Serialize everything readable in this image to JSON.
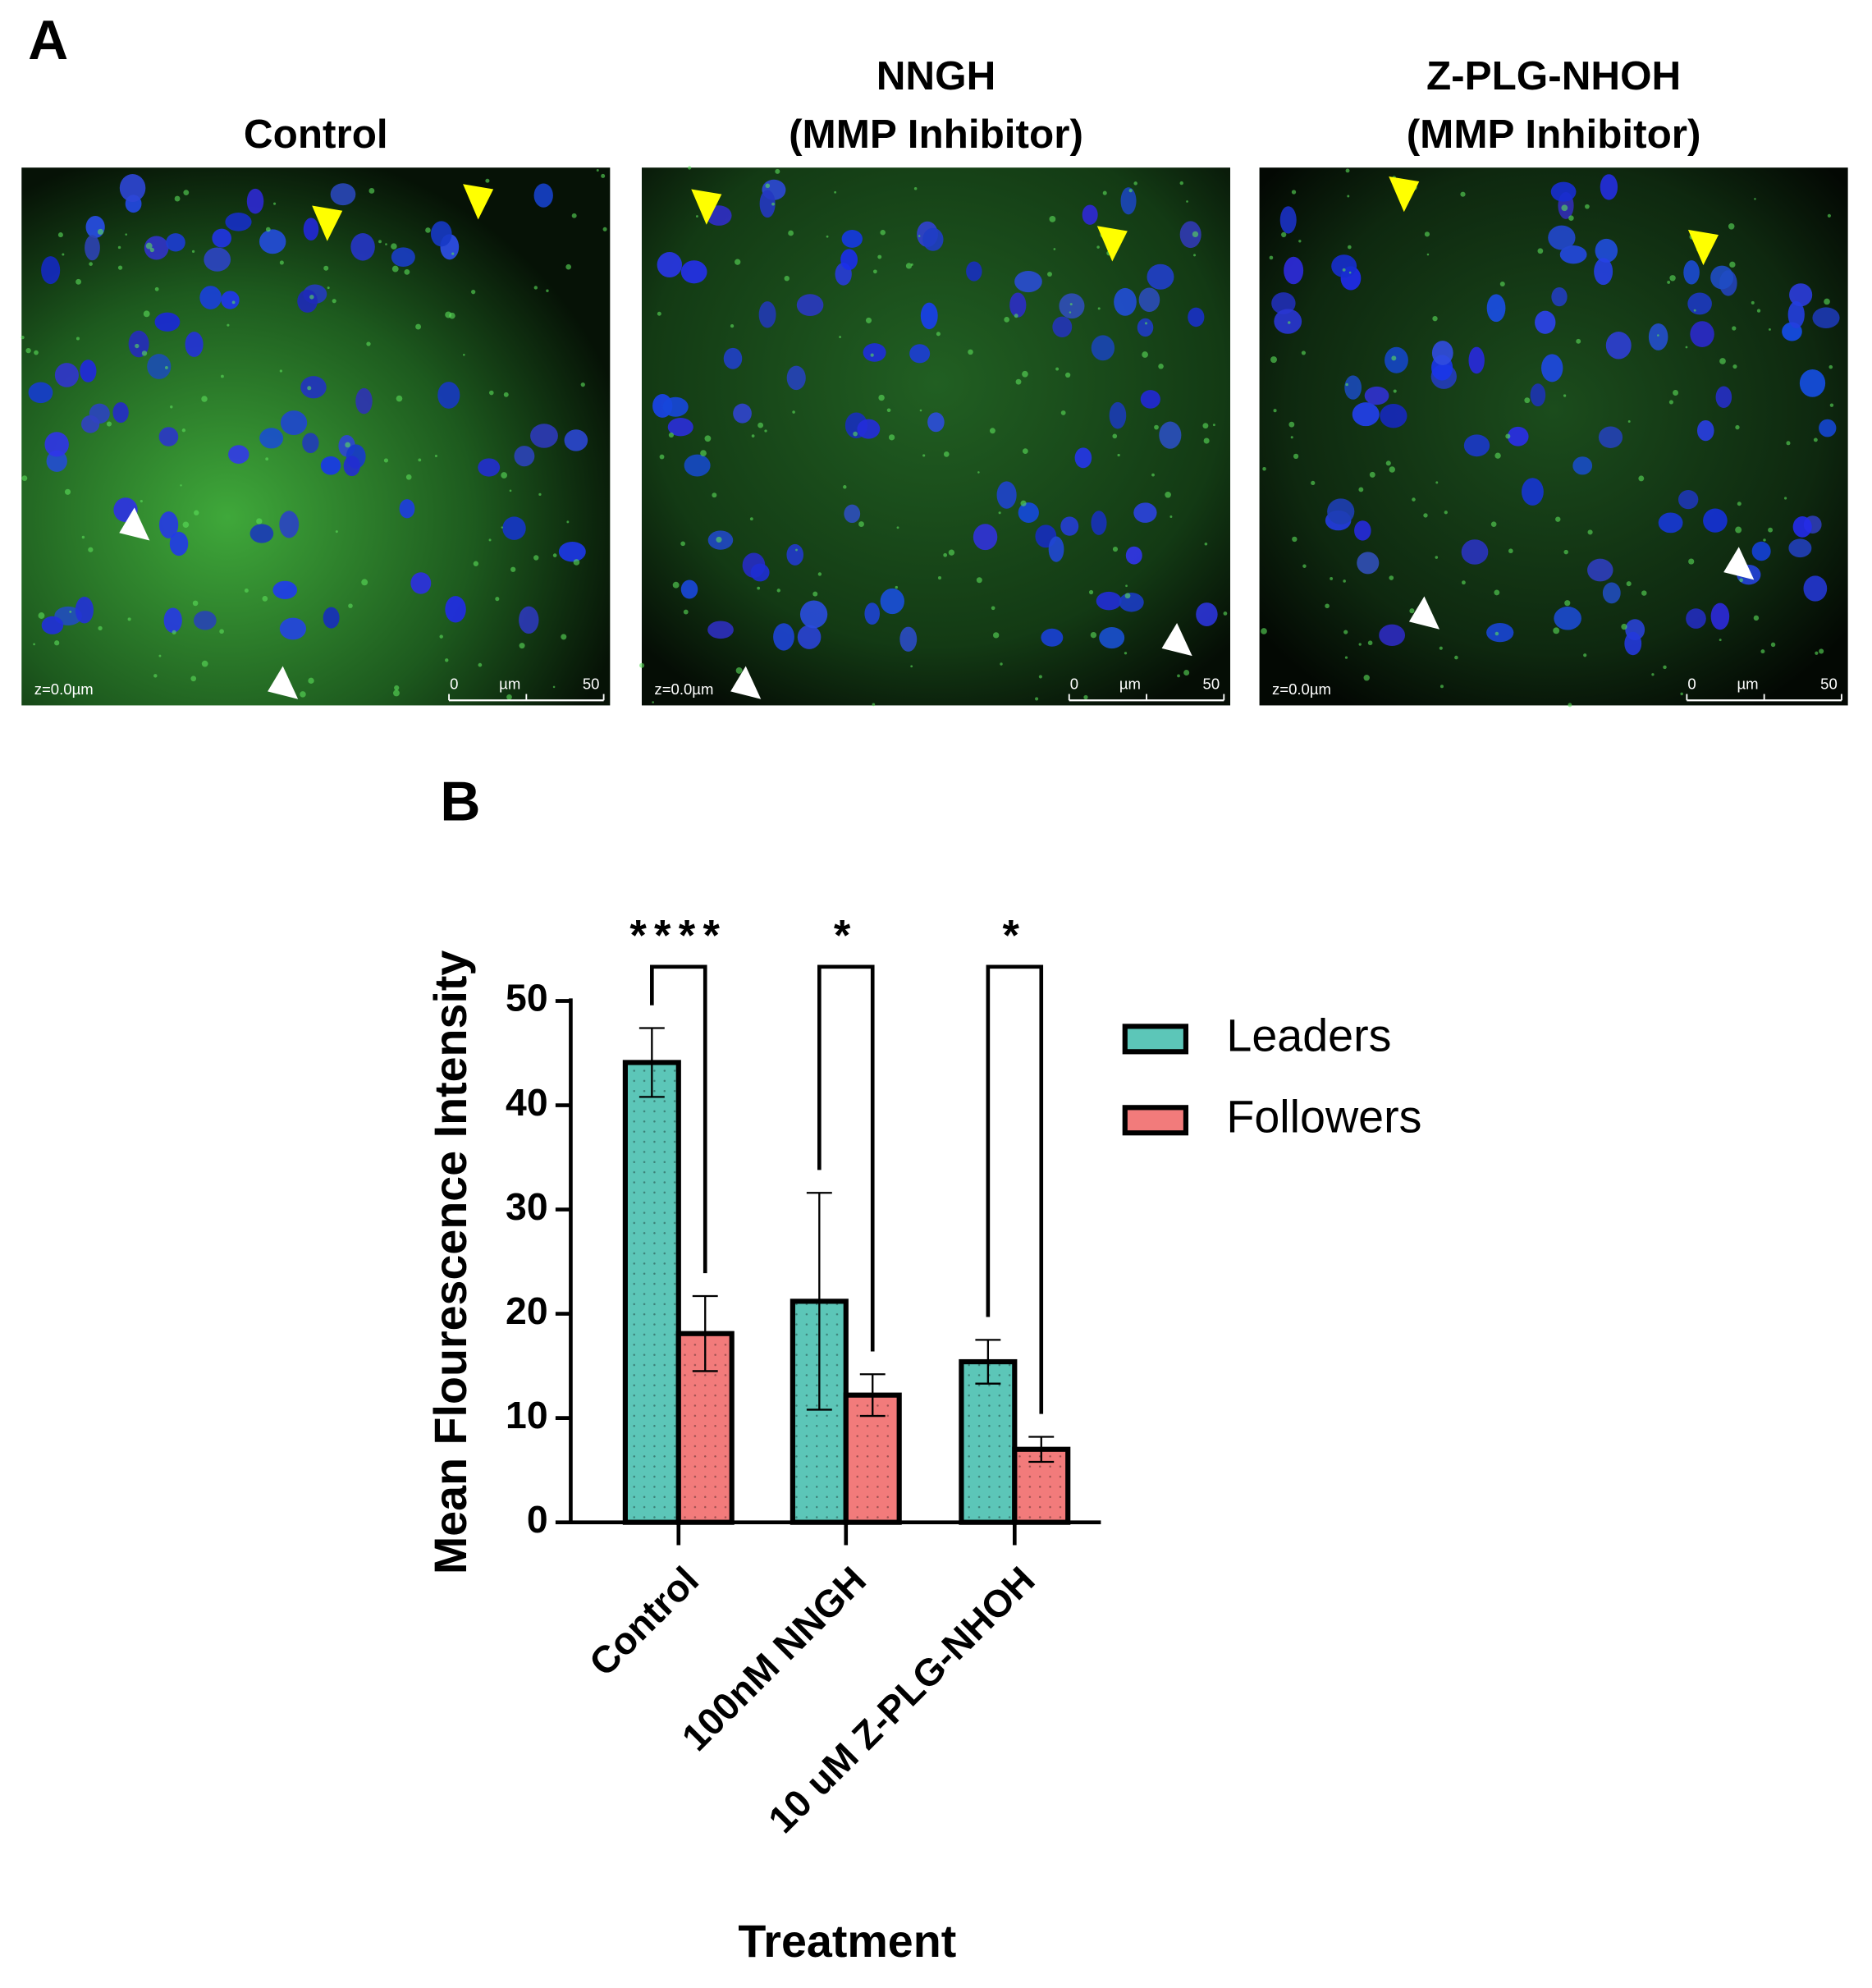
{
  "panel_a": {
    "label": "A",
    "images": [
      {
        "title": [
          "Control"
        ],
        "z": "z=0.0µm",
        "scale": [
          "0",
          "µm",
          "50"
        ]
      },
      {
        "title": [
          "NNGH",
          "(MMP Inhibitor)"
        ],
        "z": "z=0.0µm",
        "scale": [
          "0",
          "µm",
          "50"
        ]
      },
      {
        "title": [
          "Z-PLG-NHOH",
          "(MMP Inhibitor)"
        ],
        "z": "z=0.0µm",
        "scale": [
          "0",
          "µm",
          "50"
        ]
      }
    ]
  },
  "chart_data": {
    "type": "bar",
    "panel_label": "B",
    "x_label": "Treatment",
    "y_label": "Mean Flourescence Intensity",
    "categories": [
      "Control",
      "100nM NNGH",
      "10 uM Z-PLG-NHOH"
    ],
    "series": [
      {
        "name": "Leaders",
        "color": "#5cc6b8",
        "values": [
          44.1,
          21.2,
          15.4
        ],
        "errors": [
          3.3,
          10.4,
          2.1
        ]
      },
      {
        "name": "Followers",
        "color": "#f27b7b",
        "values": [
          18.1,
          12.2,
          7.0
        ],
        "errors": [
          3.6,
          2.0,
          1.2
        ]
      }
    ],
    "significance": [
      "****",
      "*",
      "*"
    ],
    "ylim": [
      0,
      50
    ],
    "yticks": [
      0,
      10,
      20,
      30,
      40,
      50
    ],
    "legend": "right"
  }
}
